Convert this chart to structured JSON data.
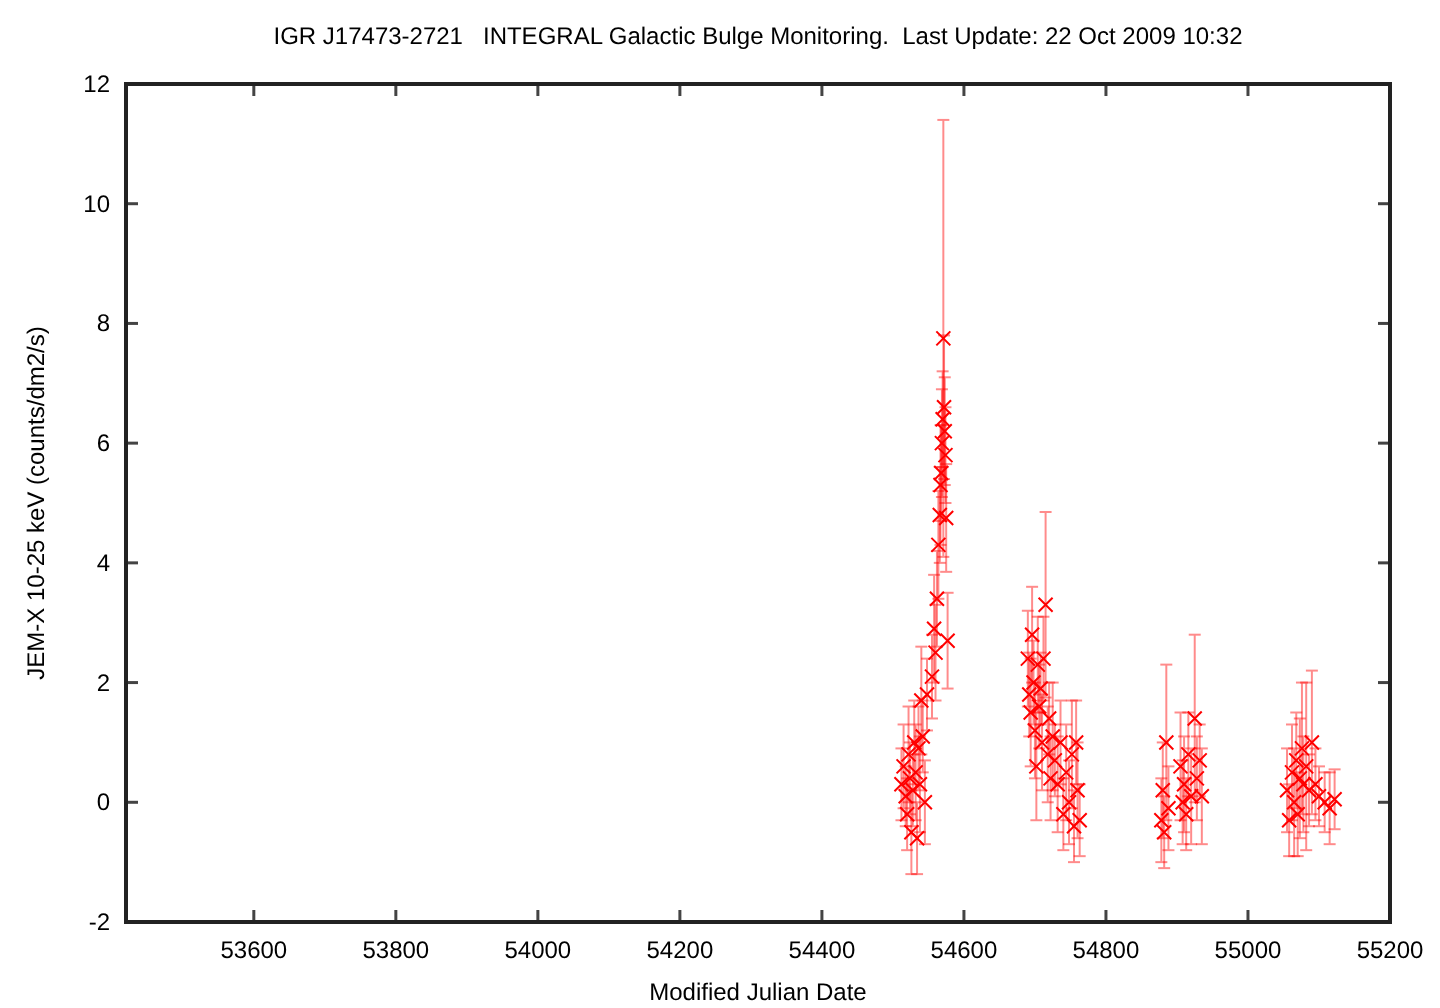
{
  "chart_data": {
    "type": "scatter",
    "title": "IGR J17473-2721   INTEGRAL Galactic Bulge Monitoring.  Last Update: 22 Oct 2009 10:32",
    "xlabel": "Modified Julian Date",
    "ylabel": "JEM-X 10-25 keV (counts/dm2/s)",
    "xlim": [
      53420,
      55200
    ],
    "xticks": [
      53600,
      53800,
      54000,
      54200,
      54400,
      54600,
      54800,
      55000,
      55200
    ],
    "ylim": [
      -2,
      12
    ],
    "yticks": [
      -2,
      0,
      2,
      4,
      6,
      8,
      10,
      12
    ],
    "grid": false,
    "marker": "cross",
    "series": [
      {
        "color": "#ff0000",
        "x": [
          54512,
          54515,
          54518,
          54520,
          54522,
          54524,
          54526,
          54528,
          54530,
          54532,
          54534,
          54536,
          54538,
          54540,
          54542,
          54545,
          54548,
          54555,
          54558,
          54560,
          54562,
          54564,
          54566,
          54567,
          54568,
          54569,
          54570,
          54571,
          54572,
          54573,
          54574,
          54575,
          54577,
          54690,
          54692,
          54694,
          54696,
          54698,
          54700,
          54702,
          54704,
          54706,
          54708,
          54710,
          54712,
          54715,
          54718,
          54720,
          54722,
          54725,
          54728,
          54732,
          54736,
          54740,
          54744,
          54748,
          54752,
          54755,
          54758,
          54760,
          54763,
          54878,
          54880,
          54882,
          54885,
          54888,
          54905,
          54908,
          54910,
          54913,
          54916,
          54920,
          54925,
          54928,
          54932,
          54935,
          55055,
          55058,
          55062,
          55065,
          55068,
          55070,
          55073,
          55076,
          55078,
          55082,
          55086,
          55090,
          55095,
          55100,
          55108,
          55115,
          55122
        ],
        "values": [
          0.3,
          0.6,
          0.1,
          -0.2,
          0.8,
          0.4,
          -0.5,
          0.2,
          1.0,
          0.5,
          -0.6,
          0.9,
          0.3,
          1.7,
          1.1,
          0.0,
          1.8,
          2.1,
          2.9,
          2.5,
          3.4,
          4.3,
          4.8,
          5.3,
          5.5,
          6.0,
          6.4,
          7.75,
          6.6,
          6.2,
          5.8,
          4.75,
          2.7,
          2.4,
          1.8,
          1.5,
          2.8,
          2.0,
          1.2,
          0.6,
          2.3,
          1.6,
          1.9,
          1.0,
          2.4,
          3.3,
          0.8,
          1.4,
          0.4,
          1.1,
          0.7,
          0.3,
          1.0,
          -0.2,
          0.5,
          0.0,
          0.8,
          -0.4,
          1.0,
          0.2,
          -0.3,
          -0.3,
          0.2,
          -0.5,
          1.0,
          -0.1,
          0.6,
          0.0,
          0.3,
          -0.2,
          0.8,
          0.1,
          1.4,
          0.4,
          0.7,
          0.1,
          0.2,
          -0.3,
          0.5,
          0.0,
          0.7,
          -0.2,
          0.4,
          0.9,
          0.3,
          0.6,
          0.2,
          1.0,
          0.3,
          0.1,
          0.0,
          -0.1,
          0.05
        ],
        "errors": [
          0.6,
          0.7,
          0.5,
          0.6,
          0.8,
          0.6,
          0.7,
          0.6,
          0.7,
          0.8,
          0.6,
          0.7,
          0.8,
          0.9,
          0.6,
          0.7,
          0.6,
          0.7,
          0.9,
          0.8,
          0.8,
          0.9,
          0.8,
          1.0,
          0.8,
          0.9,
          0.8,
          3.65,
          1.2,
          0.9,
          0.8,
          0.9,
          0.8,
          0.8,
          0.7,
          0.9,
          0.8,
          0.7,
          0.8,
          0.9,
          0.8,
          0.7,
          0.6,
          0.8,
          0.7,
          1.55,
          0.8,
          0.6,
          0.7,
          0.9,
          0.6,
          0.8,
          0.7,
          0.6,
          0.8,
          0.7,
          0.9,
          0.6,
          0.7,
          0.8,
          0.6,
          0.7,
          0.8,
          0.6,
          1.3,
          0.7,
          0.9,
          0.7,
          0.8,
          0.6,
          0.7,
          0.8,
          1.4,
          0.7,
          0.6,
          0.8,
          0.7,
          0.6,
          0.8,
          0.9,
          0.8,
          0.7,
          1.0,
          1.1,
          0.8,
          1.4,
          0.6,
          1.2,
          0.6,
          0.5,
          0.5,
          0.6,
          0.5
        ]
      }
    ]
  }
}
